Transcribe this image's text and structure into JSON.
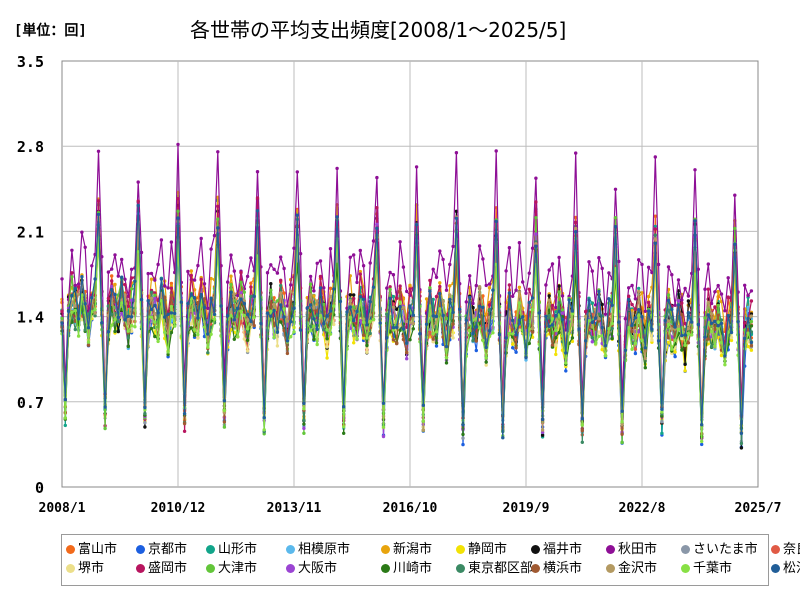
{
  "header": {
    "unit_label": "[単位：回]",
    "title": "各世帯の平均支出頻度[2008/1～2025/5]"
  },
  "chart_data": {
    "type": "line",
    "title": "各世帯の平均支出頻度[2008/1～2025/5]",
    "unit": "回",
    "x_range": [
      "2008/1",
      "2025/7"
    ],
    "x_ticks": [
      "2008/1",
      "2010/12",
      "2013/11",
      "2016/10",
      "2019/9",
      "2022/8",
      "2025/7"
    ],
    "y_ticks": [
      "0",
      "0.7",
      "1.4",
      "2.1",
      "2.8",
      "3.5"
    ],
    "ylim": [
      0,
      3.5
    ],
    "grid": true,
    "legend_position": "bottom",
    "seasonal_note_values": {
      "annual_peak_month": 12,
      "annual_trough_month": 2
    },
    "series": [
      {
        "name": "富山市",
        "color": "#f26a1b",
        "base": 1.5,
        "amp": 0.85,
        "noise": 0.15
      },
      {
        "name": "京都市",
        "color": "#1c5fe0",
        "base": 1.35,
        "amp": 0.8,
        "noise": 0.15
      },
      {
        "name": "山形市",
        "color": "#12a58a",
        "base": 1.45,
        "amp": 0.9,
        "noise": 0.16
      },
      {
        "name": "相模原市",
        "color": "#5bb9ec",
        "base": 1.4,
        "amp": 0.75,
        "noise": 0.14
      },
      {
        "name": "新潟市",
        "color": "#e8a40d",
        "base": 1.55,
        "amp": 0.85,
        "noise": 0.15
      },
      {
        "name": "静岡市",
        "color": "#f2e205",
        "base": 1.35,
        "amp": 0.7,
        "noise": 0.14
      },
      {
        "name": "福井市",
        "color": "#111111",
        "base": 1.45,
        "amp": 0.85,
        "noise": 0.16
      },
      {
        "name": "秋田市",
        "color": "#8e0f96",
        "base": 1.75,
        "amp": 1.05,
        "noise": 0.2
      },
      {
        "name": "さいたま市",
        "color": "#8a97a8",
        "base": 1.4,
        "amp": 0.8,
        "noise": 0.14
      },
      {
        "name": "奈良市",
        "color": "#e05a45",
        "base": 1.4,
        "amp": 0.75,
        "noise": 0.15
      },
      {
        "name": "堺市",
        "color": "#ecdf8a",
        "base": 1.35,
        "amp": 0.7,
        "noise": 0.14
      },
      {
        "name": "盛岡市",
        "color": "#b8155f",
        "base": 1.5,
        "amp": 0.9,
        "noise": 0.16
      },
      {
        "name": "大津市",
        "color": "#63c63a",
        "base": 1.45,
        "amp": 0.85,
        "noise": 0.16
      },
      {
        "name": "大阪市",
        "color": "#9b45d3",
        "base": 1.4,
        "amp": 0.8,
        "noise": 0.15
      },
      {
        "name": "川崎市",
        "color": "#2b7a17",
        "base": 1.35,
        "amp": 0.75,
        "noise": 0.14
      },
      {
        "name": "東京都区部",
        "color": "#3b8a64",
        "base": 1.4,
        "amp": 0.8,
        "noise": 0.15
      },
      {
        "name": "横浜市",
        "color": "#a05a32",
        "base": 1.4,
        "amp": 0.75,
        "noise": 0.15
      },
      {
        "name": "金沢市",
        "color": "#b49a62",
        "base": 1.45,
        "amp": 0.8,
        "noise": 0.15
      },
      {
        "name": "千葉市",
        "color": "#88e045",
        "base": 1.35,
        "amp": 0.75,
        "noise": 0.14
      },
      {
        "name": "松江市",
        "color": "#215e98",
        "base": 1.45,
        "amp": 0.85,
        "noise": 0.15
      }
    ]
  }
}
